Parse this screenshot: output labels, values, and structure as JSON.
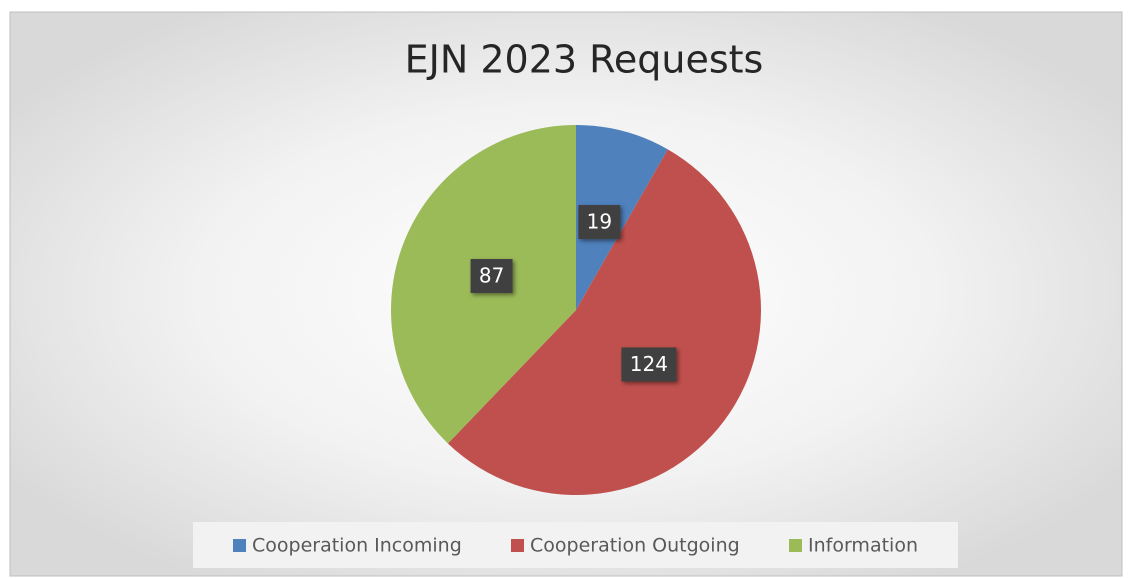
{
  "chart_data": {
    "type": "pie",
    "title": "EJN 2023 Requests",
    "categories": [
      "Cooperation Incoming",
      "Cooperation Outgoing",
      "Information"
    ],
    "values": [
      19,
      124,
      87
    ],
    "colors": [
      "#4f81bd",
      "#c0504d",
      "#9bbb59"
    ],
    "legend": "bottom"
  }
}
